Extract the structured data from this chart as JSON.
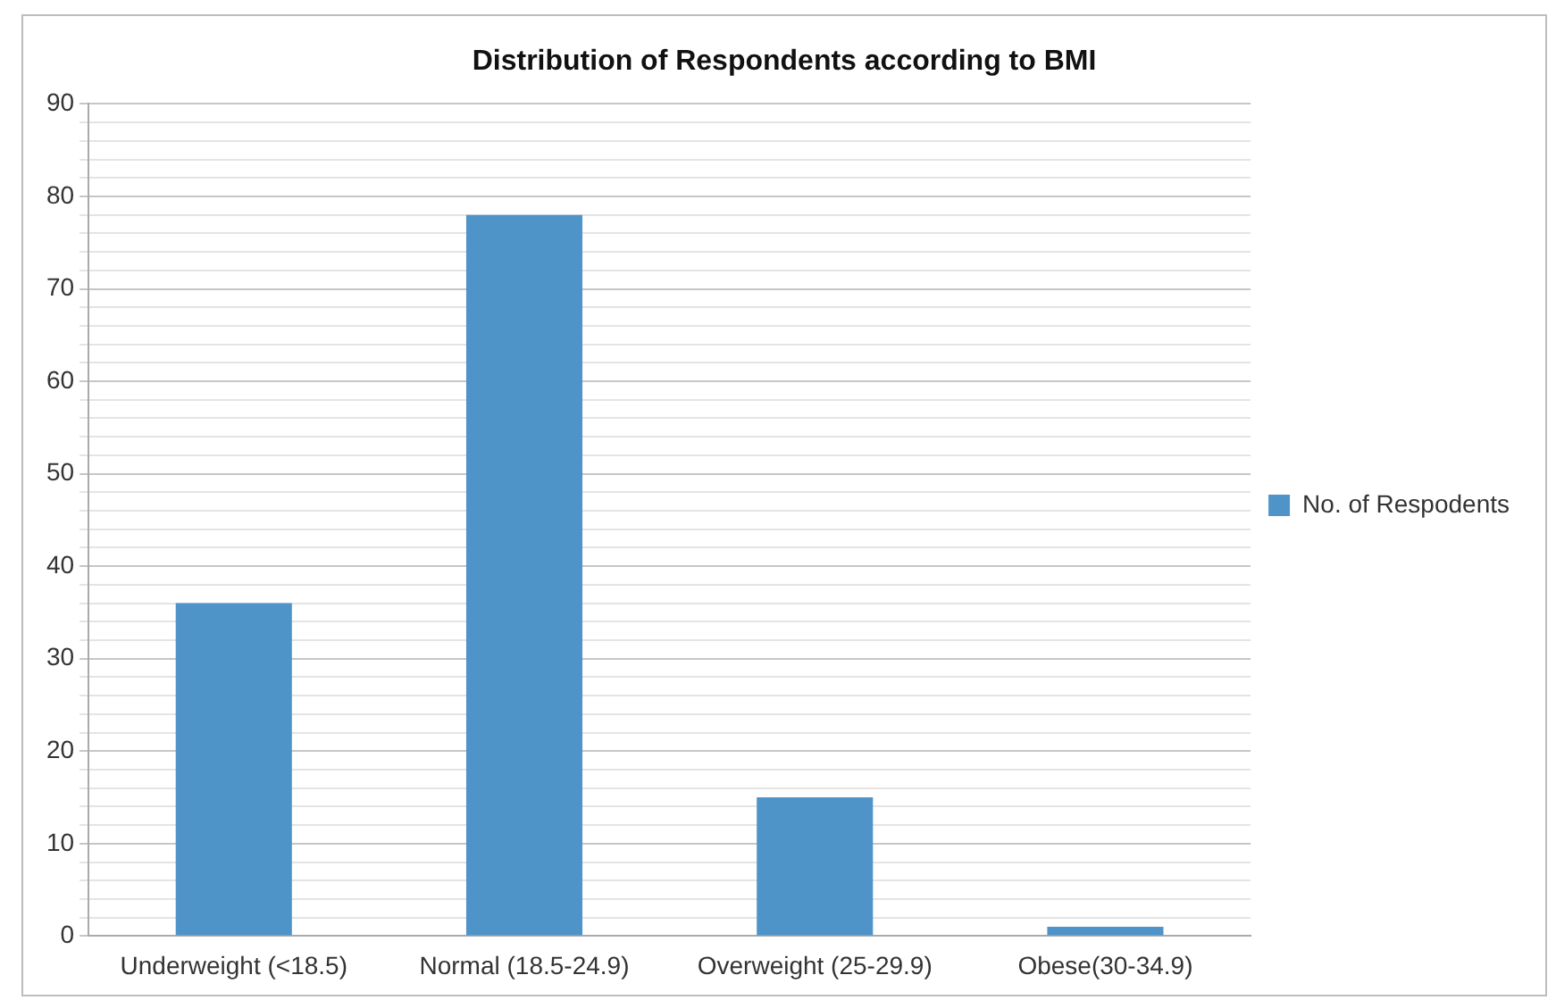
{
  "chart_data": {
    "type": "bar",
    "title": "Distribution of Respondents according to BMI",
    "categories": [
      "Underweight (<18.5)",
      "Normal (18.5-24.9)",
      "Overweight (25-29.9)",
      "Obese(30-34.9)"
    ],
    "series": [
      {
        "name": "No. of Respodents",
        "color": "#4f94c9",
        "values": [
          36,
          78,
          15,
          1
        ]
      }
    ],
    "ylim": [
      0,
      90
    ],
    "yticks": [
      0,
      {
        "value": 2,
        "label": null
      },
      {
        "value": 4,
        "label": null
      },
      {
        "value": 6,
        "label": null
      },
      {
        "value": 8,
        "label": null
      },
      10,
      {
        "value": 12,
        "label": null
      },
      {
        "value": 14,
        "label": null
      },
      {
        "value": 16,
        "label": null
      },
      {
        "value": 18,
        "label": null
      },
      20,
      {
        "value": 22,
        "label": null
      },
      {
        "value": 24,
        "label": null
      },
      {
        "value": 26,
        "label": null
      },
      {
        "value": 28,
        "label": null
      },
      30,
      {
        "value": 32,
        "label": null
      },
      {
        "value": 34,
        "label": null
      },
      {
        "value": 36,
        "label": null
      },
      {
        "value": 38,
        "label": null
      },
      40,
      {
        "value": 42,
        "label": null
      },
      {
        "value": 44,
        "label": null
      },
      {
        "value": 46,
        "label": null
      },
      {
        "value": 48,
        "label": null
      },
      50,
      {
        "value": 52,
        "label": null
      },
      {
        "value": 54,
        "label": null
      },
      {
        "value": 56,
        "label": null
      },
      {
        "value": 58,
        "label": null
      },
      60,
      {
        "value": 62,
        "label": null
      },
      {
        "value": 64,
        "label": null
      },
      {
        "value": 66,
        "label": null
      },
      {
        "value": 68,
        "label": null
      },
      70,
      {
        "value": 72,
        "label": null
      },
      {
        "value": 74,
        "label": null
      },
      {
        "value": 76,
        "label": null
      },
      {
        "value": 78,
        "label": null
      },
      80,
      {
        "value": 82,
        "label": null
      },
      {
        "value": 84,
        "label": null
      },
      {
        "value": 86,
        "label": null
      },
      {
        "value": 88,
        "label": null
      },
      90
    ],
    "grid": "y",
    "legend": "right"
  }
}
